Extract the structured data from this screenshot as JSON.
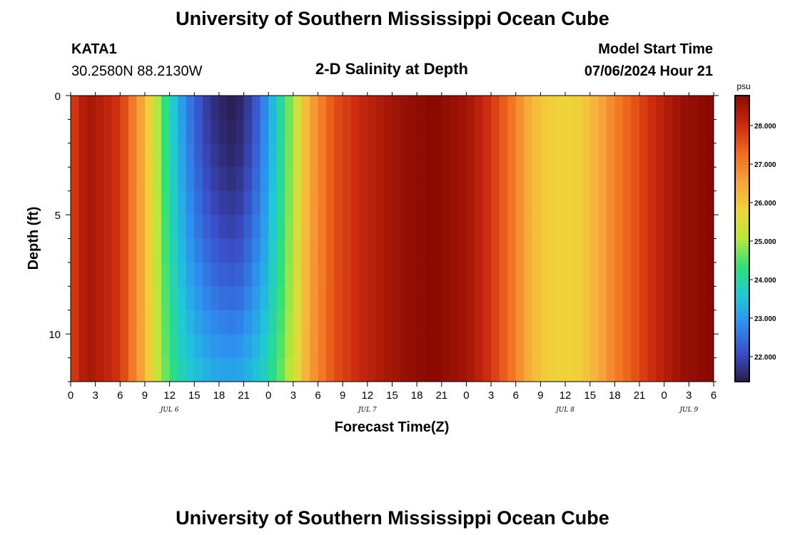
{
  "page": {
    "title": "University of Southern Mississippi Ocean Cube",
    "footer_title": "University of Southern Mississippi Ocean Cube"
  },
  "station": {
    "id": "KATA1",
    "coords": "30.2580N  88.2130W"
  },
  "model_start": {
    "label": "Model Start Time",
    "value": "07/06/2024 Hour 21"
  },
  "chart_data": {
    "type": "heatmap",
    "title": "2-D Salinity at Depth",
    "xlabel": "Forecast Time(Z)",
    "ylabel": "Depth (ft)",
    "x_unit": "hours from Jul 6 00Z",
    "xlim": [
      0,
      78
    ],
    "ylim": [
      12,
      0
    ],
    "x_tick_values": [
      0,
      3,
      6,
      9,
      12,
      15,
      18,
      21,
      24,
      27,
      30,
      33,
      36,
      39,
      42,
      45,
      48,
      51,
      54,
      57,
      60,
      63,
      66,
      69,
      72,
      75,
      78
    ],
    "x_tick_labels": [
      "0",
      "3",
      "6",
      "9",
      "12",
      "15",
      "18",
      "21",
      "0",
      "3",
      "6",
      "9",
      "12",
      "15",
      "18",
      "21",
      "0",
      "3",
      "6",
      "9",
      "12",
      "15",
      "18",
      "21",
      "0",
      "3",
      "6"
    ],
    "y_tick_values": [
      0,
      5,
      10
    ],
    "y_tick_labels": [
      "0",
      "5",
      "10"
    ],
    "date_labels": [
      {
        "text": "JUL 6",
        "x": 12
      },
      {
        "text": "JUL 7",
        "x": 36
      },
      {
        "text": "JUL 8",
        "x": 60
      },
      {
        "text": "JUL 9",
        "x": 75
      }
    ],
    "colorbar": {
      "unit": "psu",
      "min": 21.35,
      "max": 28.78,
      "ticks": [
        22.0,
        23.0,
        24.0,
        25.0,
        26.0,
        27.0,
        28.0
      ],
      "tick_labels": [
        "22.000",
        "23.000",
        "24.000",
        "25.000",
        "26.000",
        "27.000",
        "28.000"
      ],
      "colors": [
        "#2a1b4e",
        "#3a4fc8",
        "#2e8ef0",
        "#1fc8d8",
        "#2ee07a",
        "#b8e83a",
        "#f0d43a",
        "#f7a23a",
        "#f06a1e",
        "#c9290e",
        "#8a0a02"
      ]
    },
    "surface_profile": {
      "hours": [
        0,
        2,
        6,
        9,
        11,
        13,
        15,
        17,
        19,
        20,
        21,
        23,
        25,
        27,
        29,
        32,
        36,
        40,
        44,
        48,
        51,
        54,
        56,
        58,
        60,
        62,
        64,
        66,
        70,
        74,
        78
      ],
      "salinity": [
        27.7,
        28.5,
        27.9,
        26.3,
        24.6,
        23.3,
        22.3,
        21.7,
        21.4,
        21.4,
        21.6,
        22.4,
        23.7,
        25.0,
        26.5,
        27.6,
        28.2,
        28.6,
        28.8,
        28.5,
        27.9,
        27.0,
        26.2,
        25.9,
        25.8,
        25.9,
        26.4,
        27.0,
        27.9,
        28.6,
        28.8
      ]
    },
    "bottom_profile": {
      "hours": [
        0,
        2,
        6,
        9,
        11,
        13,
        15,
        17,
        19,
        20,
        21,
        23,
        25,
        27,
        29,
        32,
        36,
        40,
        44,
        48,
        51,
        54,
        56,
        58,
        60,
        62,
        64,
        66,
        70,
        74,
        78
      ],
      "salinity": [
        27.7,
        28.5,
        27.9,
        26.3,
        24.9,
        24.0,
        23.6,
        23.3,
        23.2,
        23.2,
        23.3,
        23.7,
        24.4,
        25.3,
        26.6,
        27.6,
        28.2,
        28.6,
        28.8,
        28.5,
        27.9,
        27.0,
        26.2,
        25.9,
        25.8,
        25.9,
        26.4,
        27.0,
        27.9,
        28.6,
        28.8
      ]
    },
    "depth_levels": 12,
    "time_step_hours": 1
  }
}
